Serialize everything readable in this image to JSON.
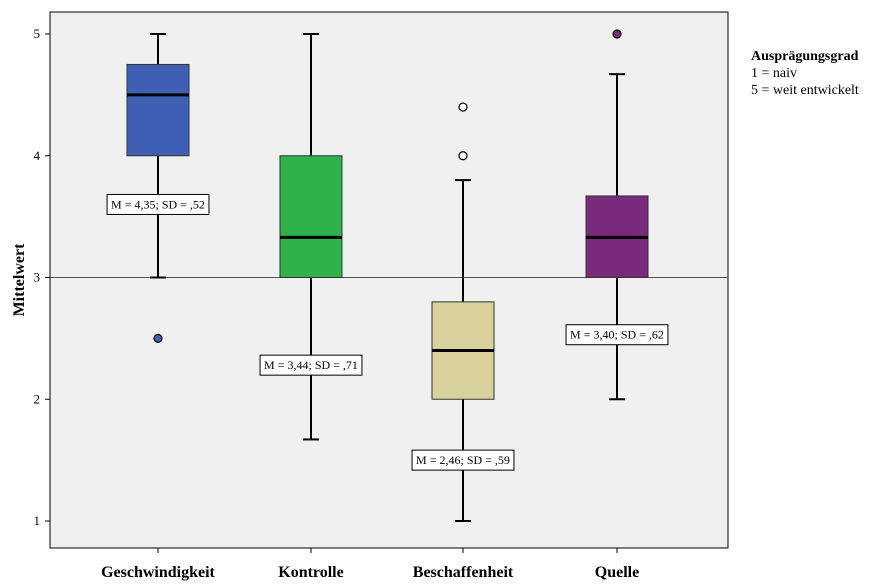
{
  "chart_data": {
    "type": "boxplot",
    "ylabel": "Mittelwert",
    "xlabel": "",
    "ylim": [
      0.9,
      5.1
    ],
    "yticks": [
      1,
      2,
      3,
      4,
      5
    ],
    "grid": false,
    "background_color": "#f0f0f0",
    "reference_line": 3,
    "categories": [
      "Geschwindigkeit",
      "Kontrolle",
      "Beschaffenheit",
      "Quelle"
    ],
    "boxes": [
      {
        "category": "Geschwindigkeit",
        "color": "#3f5fb5",
        "whisker_low": 3,
        "q1": 4,
        "median": 4.5,
        "q3": 4.75,
        "whisker_high": 5,
        "outliers": [
          {
            "value": 2.5,
            "filled": true
          }
        ],
        "annotation": "M = 4,35; SD = ,52",
        "annotation_value": 3.6
      },
      {
        "category": "Kontrolle",
        "color": "#2db34a",
        "whisker_low": 1.67,
        "q1": 3,
        "median": 3.33,
        "q3": 4,
        "whisker_high": 5,
        "outliers": [],
        "annotation": "M = 3,44; SD = ,71",
        "annotation_value": 2.28
      },
      {
        "category": "Beschaffenheit",
        "color": "#d8d19c",
        "whisker_low": 1,
        "q1": 2,
        "median": 2.4,
        "q3": 2.8,
        "whisker_high": 3.8,
        "outliers": [
          {
            "value": 4,
            "filled": false
          },
          {
            "value": 4.4,
            "filled": false
          }
        ],
        "annotation": "M = 2,46; SD = ,59",
        "annotation_value": 1.5
      },
      {
        "category": "Quelle",
        "color": "#7a2a7a",
        "whisker_low": 2,
        "q1": 3,
        "median": 3.33,
        "q3": 3.67,
        "whisker_high": 4.67,
        "outliers": [
          {
            "value": 5,
            "filled": true
          }
        ],
        "annotation": "M = 3,40; SD = ,62",
        "annotation_value": 2.53
      }
    ]
  },
  "legend": {
    "title": "Ausprägungsgrad",
    "line1": "1 = naiv",
    "line2": "5 = weit entwickelt"
  }
}
